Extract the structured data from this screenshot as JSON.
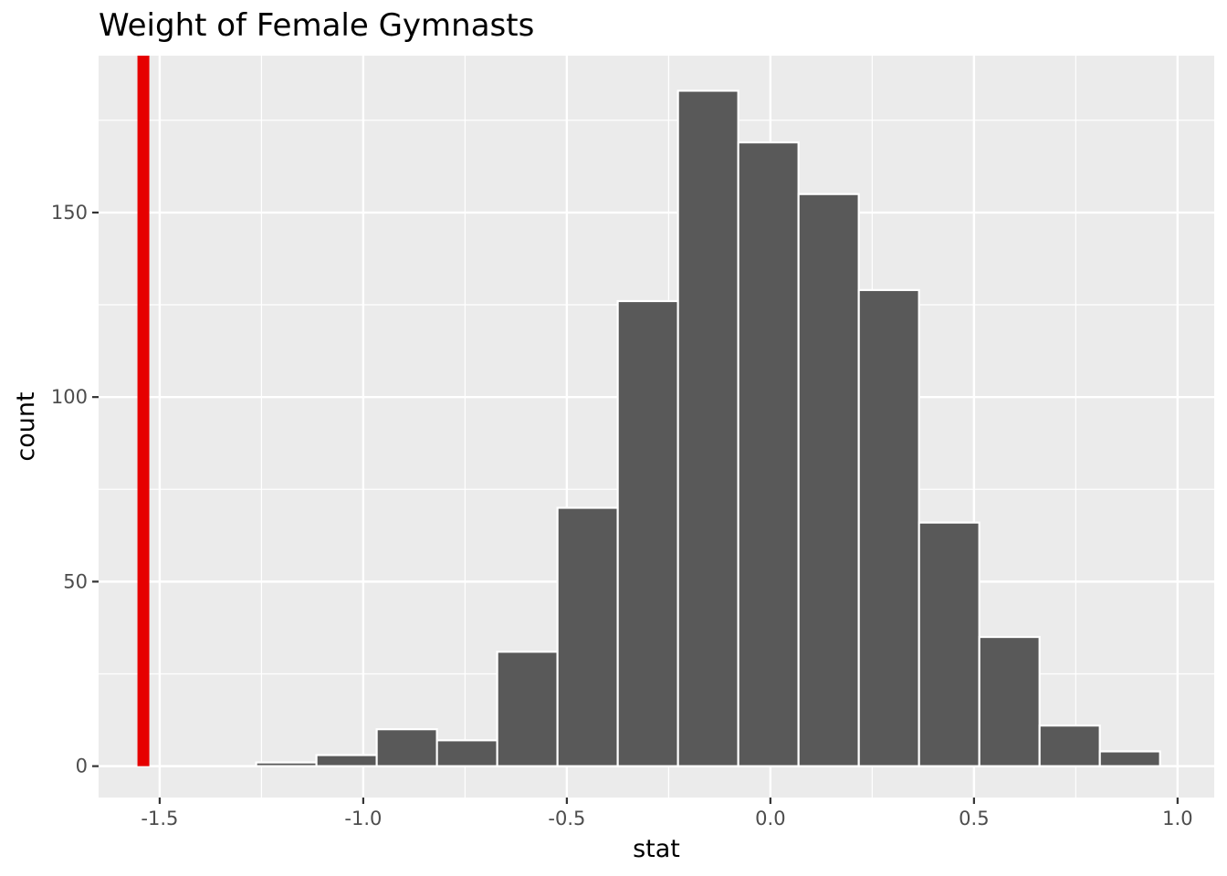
{
  "chart_data": {
    "type": "bar",
    "title": "Weight of Female Gymnasts",
    "xlabel": "stat",
    "ylabel": "count",
    "bin_width": 0.148,
    "bins": [
      {
        "x_start": -1.263,
        "x_end": -1.115,
        "count": 1
      },
      {
        "x_start": -1.115,
        "x_end": -0.967,
        "count": 3
      },
      {
        "x_start": -0.967,
        "x_end": -0.819,
        "count": 10
      },
      {
        "x_start": -0.819,
        "x_end": -0.671,
        "count": 7
      },
      {
        "x_start": -0.671,
        "x_end": -0.523,
        "count": 31
      },
      {
        "x_start": -0.523,
        "x_end": -0.375,
        "count": 70
      },
      {
        "x_start": -0.375,
        "x_end": -0.227,
        "count": 126
      },
      {
        "x_start": -0.227,
        "x_end": -0.079,
        "count": 183
      },
      {
        "x_start": -0.079,
        "x_end": 0.069,
        "count": 169
      },
      {
        "x_start": 0.069,
        "x_end": 0.217,
        "count": 155
      },
      {
        "x_start": 0.217,
        "x_end": 0.365,
        "count": 129
      },
      {
        "x_start": 0.365,
        "x_end": 0.513,
        "count": 66
      },
      {
        "x_start": 0.513,
        "x_end": 0.661,
        "count": 35
      },
      {
        "x_start": 0.661,
        "x_end": 0.809,
        "count": 11
      },
      {
        "x_start": 0.809,
        "x_end": 0.957,
        "count": 4
      }
    ],
    "reference_line": {
      "x": -1.54,
      "color": "#e60000"
    },
    "xlim": [
      -1.65,
      1.09
    ],
    "ylim": [
      -8.5,
      192.5
    ],
    "x_ticks": [
      -1.5,
      -1.0,
      -0.5,
      0.0,
      0.5,
      1.0
    ],
    "x_tick_labels": [
      "-1.5",
      "-1.0",
      "-0.5",
      "0.0",
      "0.5",
      "1.0"
    ],
    "y_ticks": [
      0,
      50,
      100,
      150
    ],
    "y_tick_labels": [
      "0",
      "50",
      "100",
      "150"
    ],
    "grid": true,
    "bar_fill": "#595959",
    "bar_outline": "#ffffff",
    "panel_background": "#ebebeb",
    "grid_color": "#ffffff"
  }
}
